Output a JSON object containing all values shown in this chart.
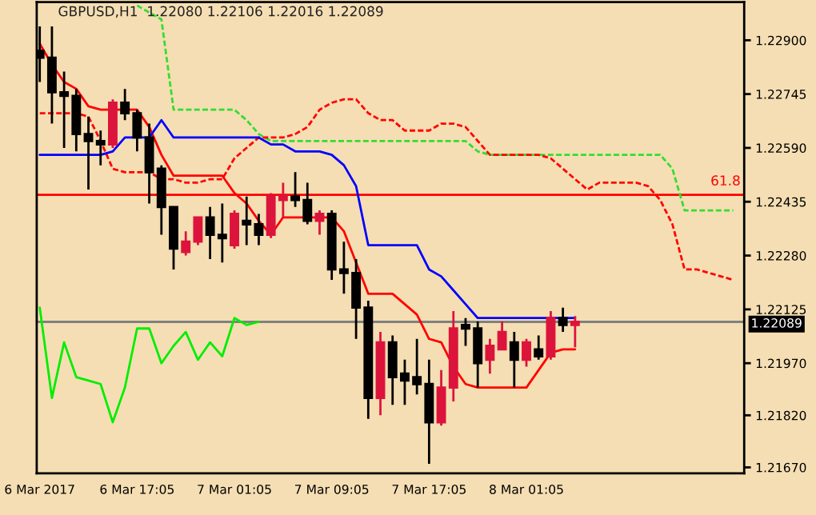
{
  "chart_data": {
    "type": "candlestick",
    "title": "GBPUSD,H1  1.22080 1.22106 1.22016 1.22089",
    "categories": [
      "6 Mar 2017",
      null,
      null,
      null,
      null,
      null,
      null,
      null,
      "6 Mar 17:05",
      null,
      null,
      null,
      null,
      null,
      null,
      null,
      "7 Mar 01:05",
      null,
      null,
      null,
      null,
      null,
      null,
      null,
      "7 Mar 09:05",
      null,
      null,
      null,
      null,
      null,
      null,
      null,
      "7 Mar 17:05",
      null,
      null,
      null,
      null,
      null,
      null,
      null,
      "8 Mar 01:05",
      null,
      null,
      null,
      null,
      null,
      null,
      null,
      null,
      null,
      null,
      null,
      null,
      null,
      null,
      null,
      null,
      null
    ],
    "ohlc": [
      [
        1.2287,
        1.2294,
        1.2278,
        1.2285
      ],
      [
        1.2285,
        1.2294,
        1.2266,
        1.2275
      ],
      [
        1.2275,
        1.2281,
        1.2259,
        1.2274
      ],
      [
        1.2274,
        1.2276,
        1.2258,
        1.2263
      ],
      [
        1.2263,
        1.2268,
        1.2247,
        1.2261
      ],
      [
        1.2261,
        1.2264,
        1.2254,
        1.226
      ],
      [
        1.226,
        1.2273,
        1.2259,
        1.2272
      ],
      [
        1.2272,
        1.2276,
        1.2267,
        1.2269
      ],
      [
        1.2269,
        1.227,
        1.2258,
        1.2262
      ],
      [
        1.2262,
        1.2266,
        1.2243,
        1.2252
      ],
      [
        1.2253,
        1.2254,
        1.2234,
        1.2242
      ],
      [
        1.2242,
        1.2242,
        1.2224,
        1.223
      ],
      [
        1.2229,
        1.2235,
        1.2228,
        1.2232
      ],
      [
        1.2232,
        1.2239,
        1.2231,
        1.2239
      ],
      [
        1.2239,
        1.2242,
        1.2227,
        1.2234
      ],
      [
        1.2234,
        1.2243,
        1.2226,
        1.2233
      ],
      [
        1.2231,
        1.2241,
        1.223,
        1.224
      ],
      [
        1.2238,
        1.2245,
        1.2231,
        1.2237
      ],
      [
        1.2237,
        1.224,
        1.2231,
        1.2234
      ],
      [
        1.2234,
        1.2246,
        1.2233,
        1.2245
      ],
      [
        1.2244,
        1.2249,
        1.2239,
        1.2245
      ],
      [
        1.2245,
        1.2252,
        1.2242,
        1.2244
      ],
      [
        1.2244,
        1.2249,
        1.2237,
        1.2238
      ],
      [
        1.2238,
        1.2241,
        1.2234,
        1.224
      ],
      [
        1.224,
        1.2241,
        1.2221,
        1.2224
      ],
      [
        1.2224,
        1.2232,
        1.2217,
        1.2223
      ],
      [
        1.2223,
        1.2227,
        1.2204,
        1.2213
      ],
      [
        1.2213,
        1.2215,
        1.2181,
        1.2187
      ],
      [
        1.2187,
        1.2206,
        1.2182,
        1.2203
      ],
      [
        1.2203,
        1.2205,
        1.2185,
        1.2193
      ],
      [
        1.2194,
        1.2198,
        1.2185,
        1.2192
      ],
      [
        1.2193,
        1.2204,
        1.2188,
        1.2191
      ],
      [
        1.2191,
        1.2198,
        1.2168,
        1.218
      ],
      [
        1.218,
        1.2195,
        1.2179,
        1.219
      ],
      [
        1.219,
        1.2212,
        1.2186,
        1.2207
      ],
      [
        1.2208,
        1.221,
        1.2202,
        1.2207
      ],
      [
        1.2207,
        1.2209,
        1.219,
        1.2197
      ],
      [
        1.2198,
        1.2204,
        1.2194,
        1.2202
      ],
      [
        1.2201,
        1.2209,
        1.2201,
        1.2206
      ],
      [
        1.2203,
        1.2206,
        1.219,
        1.2198
      ],
      [
        1.2198,
        1.2204,
        1.2196,
        1.2203
      ],
      [
        1.2201,
        1.2205,
        1.2198,
        1.2199
      ],
      [
        1.2199,
        1.2212,
        1.2198,
        1.221
      ],
      [
        1.221,
        1.2213,
        1.2206,
        1.2208
      ],
      [
        1.2208,
        1.22106,
        1.22016,
        1.22089
      ],
      null,
      null,
      null,
      null,
      null,
      null,
      null,
      null,
      null,
      null,
      null,
      null,
      null
    ],
    "colors": [
      "#000000",
      "#000000",
      "#000000",
      "#000000",
      "#000000",
      "#000000",
      "#dc143c",
      "#000000",
      "#000000",
      "#000000",
      "#000000",
      "#000000",
      "#dc143c",
      "#dc143c",
      "#000000",
      "#000000",
      "#dc143c",
      "#000000",
      "#000000",
      "#dc143c",
      "#dc143c",
      "#000000",
      "#000000",
      "#dc143c",
      "#000000",
      "#000000",
      "#000000",
      "#000000",
      "#dc143c",
      "#000000",
      "#000000",
      "#000000",
      "#000000",
      "#dc143c",
      "#dc143c",
      "#000000",
      "#000000",
      "#dc143c",
      "#dc143c",
      "#000000",
      "#dc143c",
      "#000000",
      "#dc143c",
      "#000000",
      "#dc143c",
      null,
      null,
      null,
      null,
      null,
      null,
      null,
      null,
      null,
      null,
      null,
      null,
      null
    ],
    "series": [
      {
        "type": "line",
        "color": "#00ee00",
        "line_style": "solid",
        "values": [
          1.2213,
          1.2187,
          1.2203,
          1.2193,
          1.2192,
          1.2191,
          1.218,
          1.219,
          1.2207,
          1.2207,
          1.2197,
          1.2202,
          1.2206,
          1.2198,
          1.2203,
          1.2199,
          1.221,
          1.2208,
          1.22089,
          null,
          null,
          null,
          null,
          null,
          null,
          null,
          null,
          null,
          null,
          null,
          null,
          null,
          null,
          null,
          null,
          null,
          null,
          null,
          null,
          null,
          null,
          null,
          null,
          null,
          null,
          null,
          null,
          null,
          null,
          null,
          null,
          null,
          null,
          null,
          null,
          null,
          null,
          null
        ]
      },
      {
        "type": "line",
        "color": "#33dd33",
        "line_style": "dashed",
        "values": [
          null,
          null,
          null,
          null,
          null,
          null,
          null,
          null,
          1.23,
          1.2298,
          1.2296,
          1.227,
          1.227,
          1.227,
          1.227,
          1.227,
          1.227,
          1.2267,
          1.2263,
          1.2261,
          1.2261,
          1.2261,
          1.2261,
          1.2261,
          1.2261,
          1.2261,
          1.2261,
          1.2261,
          1.2261,
          1.2261,
          1.2261,
          1.2261,
          1.2261,
          1.2261,
          1.2261,
          1.2261,
          1.2258,
          1.2257,
          1.2257,
          1.2257,
          1.2257,
          1.2257,
          1.2257,
          1.2257,
          1.2257,
          1.2257,
          1.2257,
          1.2257,
          1.2257,
          1.2257,
          1.2257,
          1.2257,
          1.2253,
          1.2241,
          1.2241,
          1.2241,
          1.2241,
          1.2241
        ]
      },
      {
        "type": "line",
        "color": "#ff0000",
        "line_style": "dashed",
        "values": [
          1.2269,
          1.2269,
          1.2269,
          1.2269,
          1.2268,
          1.2261,
          1.2253,
          1.2252,
          1.2252,
          1.2252,
          1.225,
          1.225,
          1.2249,
          1.2249,
          1.225,
          1.225,
          1.2256,
          1.2259,
          1.2262,
          1.2262,
          1.2262,
          1.2263,
          1.2265,
          1.227,
          1.2272,
          1.2273,
          1.2273,
          1.2269,
          1.2267,
          1.2267,
          1.2264,
          1.2264,
          1.2264,
          1.2266,
          1.2266,
          1.2265,
          1.2261,
          1.2257,
          1.2257,
          1.2257,
          1.2257,
          1.2257,
          1.2256,
          1.2253,
          1.225,
          1.2247,
          1.2249,
          1.2249,
          1.2249,
          1.2249,
          1.2248,
          1.2244,
          1.2237,
          1.2224,
          1.2224,
          1.2223,
          1.2222,
          1.2221
        ]
      },
      {
        "type": "line",
        "color": "#ff0000",
        "line_style": "solid",
        "values": [
          1.2289,
          1.2283,
          1.2278,
          1.2276,
          1.2271,
          1.227,
          1.227,
          1.227,
          1.227,
          1.2265,
          1.2257,
          1.2251,
          1.2251,
          1.2251,
          1.2251,
          1.2251,
          1.2246,
          1.2243,
          1.2238,
          1.2234,
          1.2239,
          1.2239,
          1.2239,
          1.2239,
          1.2239,
          1.2235,
          1.2226,
          1.2217,
          1.2217,
          1.2217,
          1.2214,
          1.2211,
          1.2204,
          1.2203,
          1.2196,
          1.2191,
          1.219,
          1.219,
          1.219,
          1.219,
          1.219,
          1.2195,
          1.22,
          1.2201,
          1.2201,
          null,
          null,
          null,
          null,
          null,
          null,
          null,
          null,
          null,
          null,
          null,
          null,
          null
        ]
      },
      {
        "type": "line",
        "color": "#0000ff",
        "line_style": "solid",
        "values": [
          1.2257,
          1.2257,
          1.2257,
          1.2257,
          1.2257,
          1.2257,
          1.2258,
          1.2262,
          1.2262,
          1.2262,
          1.2267,
          1.2262,
          1.2262,
          1.2262,
          1.2262,
          1.2262,
          1.2262,
          1.2262,
          1.2262,
          1.226,
          1.226,
          1.2258,
          1.2258,
          1.2258,
          1.2257,
          1.2254,
          1.2248,
          1.2231,
          1.2231,
          1.2231,
          1.2231,
          1.2231,
          1.2224,
          1.2222,
          1.2218,
          1.2214,
          1.221,
          1.221,
          1.221,
          1.221,
          1.221,
          1.221,
          1.221,
          1.221,
          1.221,
          null,
          null,
          null,
          null,
          null,
          null,
          null,
          null,
          null,
          null,
          null,
          null,
          null
        ]
      }
    ],
    "ref_lines": [
      {
        "axis": "y",
        "value": 1.22455,
        "color": "#ff0000"
      },
      {
        "axis": "y",
        "value": 1.22089,
        "label": "1.22089",
        "color": "#808080"
      }
    ],
    "annotations": [
      "61.8"
    ],
    "ylim": [
      1.21653,
      1.2301
    ],
    "yticks": [
      {
        "value": 1.229,
        "label": "1.22900"
      },
      {
        "value": 1.22745,
        "label": "1.22745"
      },
      {
        "value": 1.2259,
        "label": "1.22590"
      },
      {
        "value": 1.22435,
        "label": "1.22435"
      },
      {
        "value": 1.2228,
        "label": "1.22280"
      },
      {
        "value": 1.22125,
        "label": "1.22125"
      },
      {
        "value": 1.2197,
        "label": "1.21970"
      },
      {
        "value": 1.2182,
        "label": "1.21820"
      },
      {
        "value": 1.2167,
        "label": "1.21670"
      }
    ],
    "grid": false,
    "legend": false
  }
}
